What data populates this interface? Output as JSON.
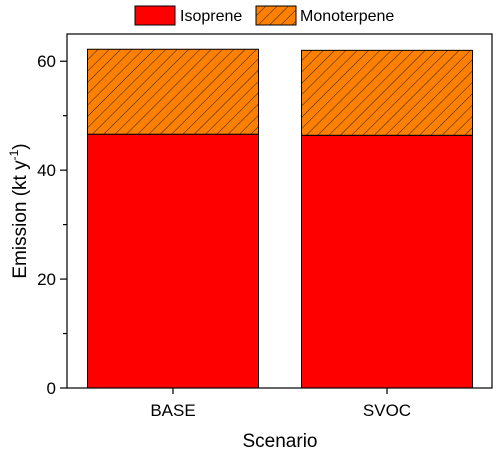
{
  "chart_data": {
    "type": "bar",
    "stacked": true,
    "categories": [
      "BASE",
      "SVOC"
    ],
    "series": [
      {
        "name": "Isoprene",
        "values": [
          46.6,
          46.4
        ],
        "color": "#ff0000",
        "pattern": "solid"
      },
      {
        "name": "Monoterpene",
        "values": [
          15.6,
          15.6
        ],
        "color": "#ff7f00",
        "pattern": "diagonal-hatch"
      }
    ],
    "xlabel": "Scenario",
    "ylabel": "Emission (kt y⁻¹)",
    "ylabel_main": "Emission (kt y",
    "ylabel_sup": "-1",
    "ylabel_end": ")",
    "ylim": [
      0,
      65
    ],
    "yticks": [
      0,
      20,
      40,
      60
    ],
    "legend_position": "top-center",
    "grid": false
  }
}
